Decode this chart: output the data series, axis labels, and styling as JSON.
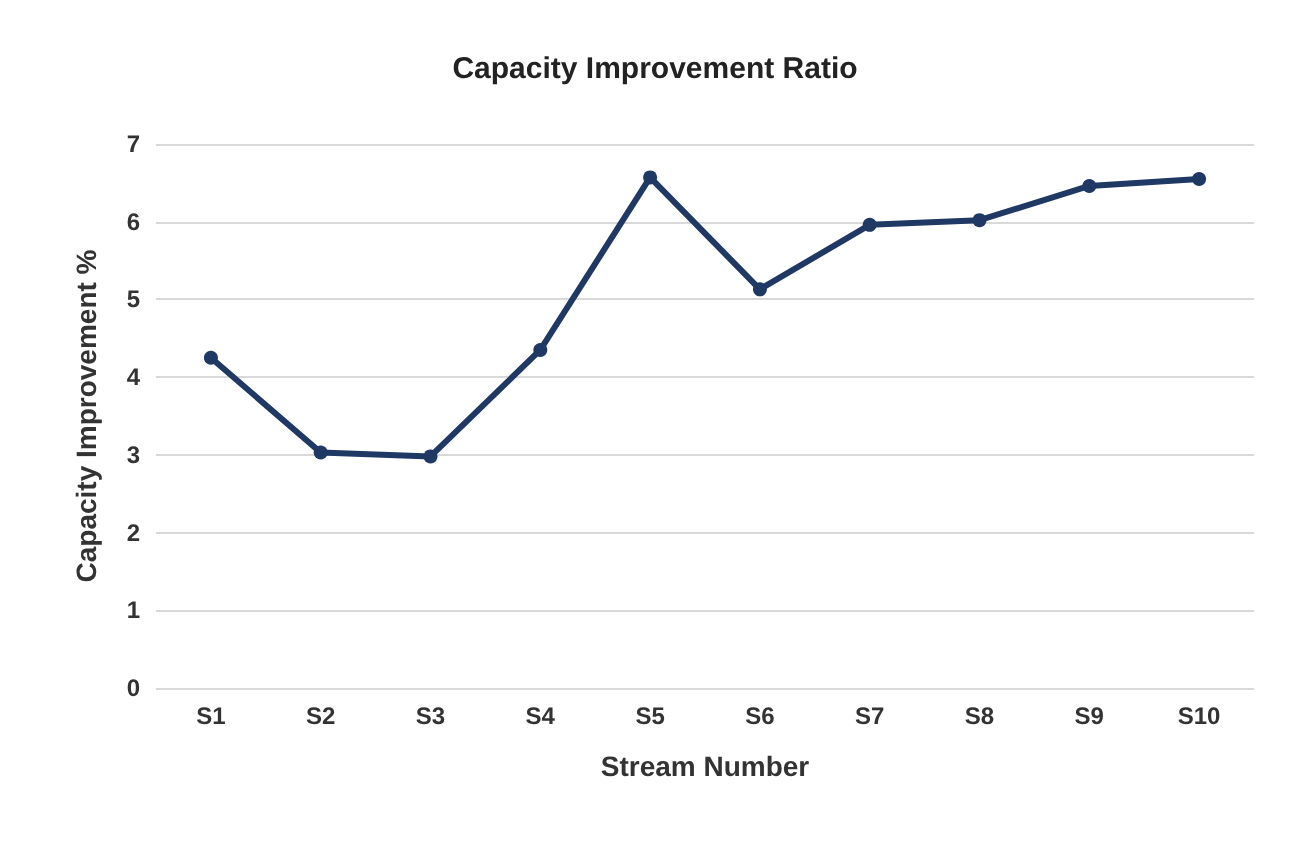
{
  "chart_data": {
    "type": "line",
    "title": "Capacity Improvement Ratio",
    "xlabel": "Stream Number",
    "ylabel": "Capacity Improvement %",
    "categories": [
      "S1",
      "S2",
      "S3",
      "S4",
      "S5",
      "S6",
      "S7",
      "S8",
      "S9",
      "S10"
    ],
    "series": [
      {
        "color": "#1f3864",
        "values": [
          4.25,
          3.03,
          2.98,
          4.35,
          6.57,
          5.13,
          5.96,
          6.02,
          6.46,
          6.55
        ]
      }
    ],
    "ylim": [
      0,
      7
    ],
    "yticks": [
      0,
      1,
      2,
      3,
      4,
      5,
      6,
      7
    ],
    "grid": "y",
    "marker": "circle",
    "line_style": "solid"
  }
}
